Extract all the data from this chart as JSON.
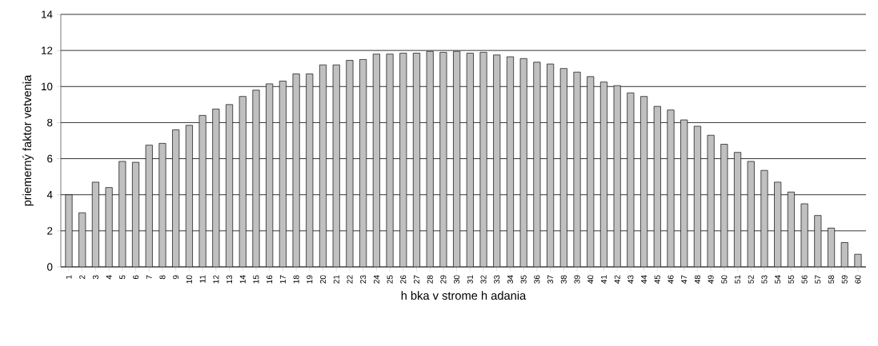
{
  "chart_data": {
    "type": "bar",
    "xlabel": "h bka v strome h adania",
    "ylabel": "priemerný faktor vetvenia",
    "categories": [
      "1",
      "2",
      "3",
      "4",
      "5",
      "6",
      "7",
      "8",
      "9",
      "10",
      "11",
      "12",
      "13",
      "14",
      "15",
      "16",
      "17",
      "18",
      "19",
      "20",
      "21",
      "22",
      "23",
      "24",
      "25",
      "26",
      "27",
      "28",
      "29",
      "30",
      "31",
      "32",
      "33",
      "34",
      "35",
      "36",
      "37",
      "38",
      "39",
      "40",
      "41",
      "42",
      "43",
      "44",
      "45",
      "46",
      "47",
      "48",
      "49",
      "50",
      "51",
      "52",
      "53",
      "54",
      "55",
      "56",
      "57",
      "58",
      "59",
      "60"
    ],
    "values": [
      4.0,
      3.0,
      4.7,
      4.4,
      5.85,
      5.8,
      6.75,
      6.85,
      7.6,
      7.85,
      8.4,
      8.75,
      9.0,
      9.45,
      9.8,
      10.15,
      10.3,
      10.7,
      10.7,
      11.2,
      11.2,
      11.45,
      11.5,
      11.8,
      11.8,
      11.85,
      11.85,
      11.95,
      11.9,
      11.95,
      11.85,
      11.9,
      11.75,
      11.65,
      11.55,
      11.35,
      11.25,
      11.0,
      10.8,
      10.55,
      10.25,
      10.05,
      9.65,
      9.45,
      8.9,
      8.7,
      8.15,
      7.8,
      7.3,
      6.8,
      6.35,
      5.85,
      5.35,
      4.7,
      4.15,
      3.5,
      2.85,
      2.15,
      1.35,
      0.7
    ],
    "color": "#c0c0c0",
    "ylim": [
      0,
      14
    ],
    "yticks": [
      0,
      2,
      4,
      6,
      8,
      10,
      12,
      14
    ],
    "grid": "y"
  }
}
